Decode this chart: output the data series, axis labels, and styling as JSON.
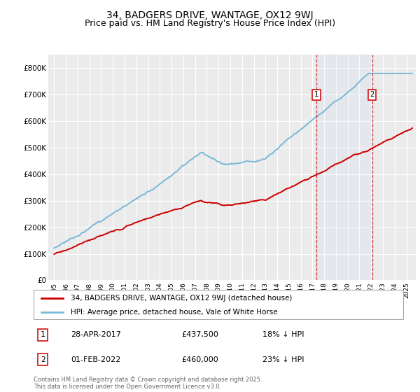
{
  "title": "34, BADGERS DRIVE, WANTAGE, OX12 9WJ",
  "subtitle": "Price paid vs. HM Land Registry's House Price Index (HPI)",
  "ylim": [
    0,
    850000
  ],
  "yticks": [
    0,
    100000,
    200000,
    300000,
    400000,
    500000,
    600000,
    700000,
    800000
  ],
  "ytick_labels": [
    "£0",
    "£100K",
    "£200K",
    "£300K",
    "£400K",
    "£500K",
    "£600K",
    "£700K",
    "£800K"
  ],
  "xlim_start": 1994.5,
  "xlim_end": 2025.8,
  "xticks": [
    1995,
    1996,
    1997,
    1998,
    1999,
    2000,
    2001,
    2002,
    2003,
    2004,
    2005,
    2006,
    2007,
    2008,
    2009,
    2010,
    2011,
    2012,
    2013,
    2014,
    2015,
    2016,
    2017,
    2018,
    2019,
    2020,
    2021,
    2022,
    2023,
    2024,
    2025
  ],
  "background_color": "#ffffff",
  "plot_bg_color": "#ebebeb",
  "grid_color": "#ffffff",
  "title_fontsize": 10,
  "subtitle_fontsize": 9,
  "sale1_x": 2017.33,
  "sale2_x": 2022.08,
  "sale_color": "#cc0000",
  "hpi_color": "#7ab8d9",
  "vline_color": "#cc0000",
  "legend_entries": [
    "34, BADGERS DRIVE, WANTAGE, OX12 9WJ (detached house)",
    "HPI: Average price, detached house, Vale of White Horse"
  ],
  "annotation1_label": "1",
  "annotation1_date": "28-APR-2017",
  "annotation1_price": "£437,500",
  "annotation1_hpi": "18% ↓ HPI",
  "annotation2_label": "2",
  "annotation2_date": "01-FEB-2022",
  "annotation2_price": "£460,000",
  "annotation2_hpi": "23% ↓ HPI",
  "footnote": "Contains HM Land Registry data © Crown copyright and database right 2025.\nThis data is licensed under the Open Government Licence v3.0."
}
